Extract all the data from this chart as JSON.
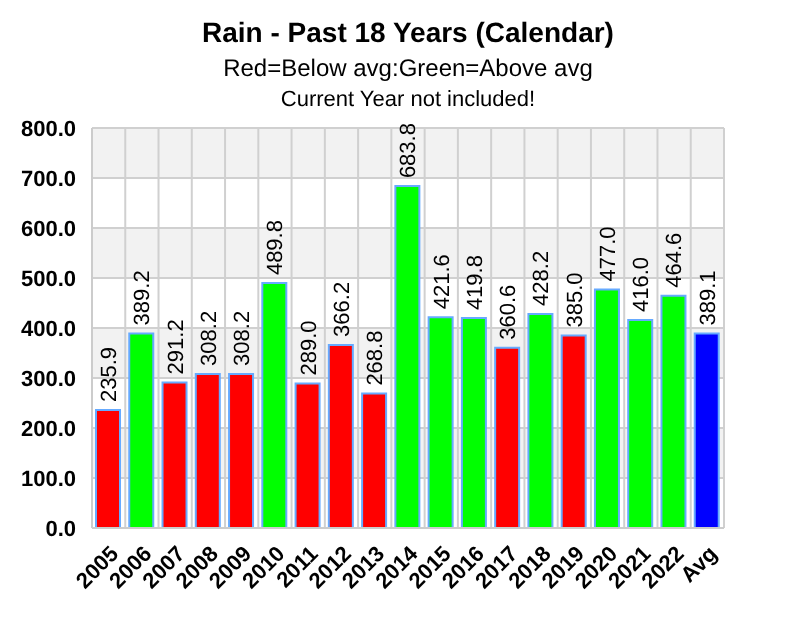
{
  "chart_data": {
    "type": "bar",
    "title": "Rain - Past 18 Years (Calendar)",
    "subtitle": "Red=Below avg:Green=Above avg",
    "annotations": [
      "Current Year not included!"
    ],
    "categories": [
      "2005",
      "2006",
      "2007",
      "2008",
      "2009",
      "2010",
      "2011",
      "2012",
      "2013",
      "2014",
      "2015",
      "2016",
      "2017",
      "2018",
      "2019",
      "2020",
      "2021",
      "2022",
      "Avg"
    ],
    "values": [
      235.9,
      389.2,
      291.2,
      308.2,
      308.2,
      489.8,
      289.0,
      366.2,
      268.8,
      683.8,
      421.6,
      419.8,
      360.6,
      428.2,
      385.0,
      477.0,
      416.0,
      464.6,
      389.1
    ],
    "colors": [
      "#ff0000",
      "#00ff00",
      "#ff0000",
      "#ff0000",
      "#ff0000",
      "#00ff00",
      "#ff0000",
      "#ff0000",
      "#ff0000",
      "#00ff00",
      "#00ff00",
      "#00ff00",
      "#ff0000",
      "#00ff00",
      "#ff0000",
      "#00ff00",
      "#00ff00",
      "#00ff00",
      "#0000ff"
    ],
    "value_labels": [
      "235.9",
      "389.2",
      "291.2",
      "308.2",
      "308.2",
      "489.8",
      "289.0",
      "366.2",
      "268.8",
      "683.8",
      "421.6",
      "419.8",
      "360.6",
      "428.2",
      "385.0",
      "477.0",
      "416.0",
      "464.6",
      "389.1"
    ],
    "ylim": [
      0,
      800
    ],
    "yticks": [
      {
        "value": 0,
        "label": "0.0"
      },
      {
        "value": 100,
        "label": "100.0"
      },
      {
        "value": 200,
        "label": "200.0"
      },
      {
        "value": 300,
        "label": "300.0"
      },
      {
        "value": 400,
        "label": "400.0"
      },
      {
        "value": 500,
        "label": "500.0"
      },
      {
        "value": 600,
        "label": "600.0"
      },
      {
        "value": 700,
        "label": "700.0"
      },
      {
        "value": 800,
        "label": "800.0"
      }
    ],
    "grid": true
  }
}
